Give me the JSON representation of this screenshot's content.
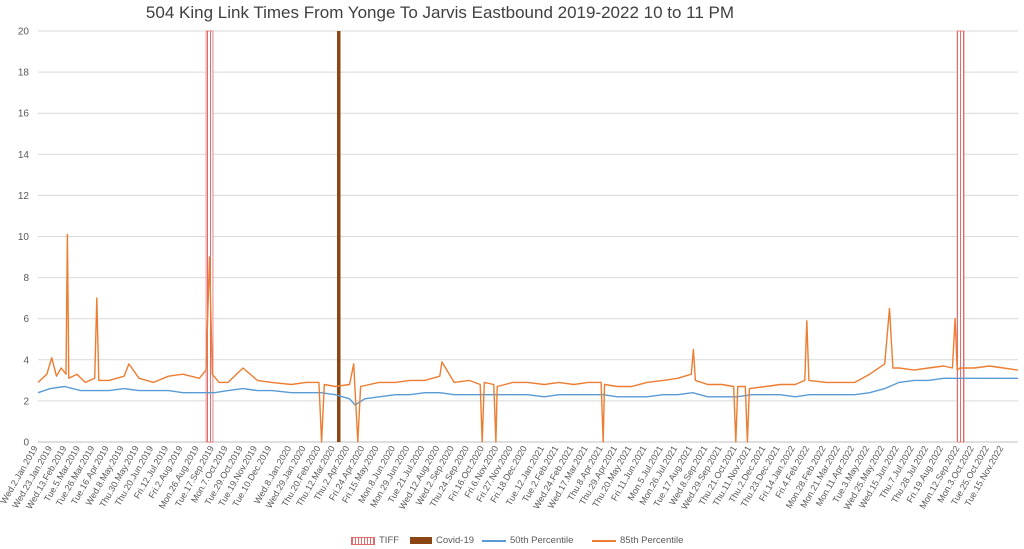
{
  "chart_data": {
    "type": "line",
    "title": "504 King Link Times From Yonge To Jarvis Eastbound 2019-2022 10 to 11 PM",
    "xlabel": "",
    "ylabel": "",
    "ylim": [
      0,
      20
    ],
    "yticks": [
      0,
      2,
      4,
      6,
      8,
      10,
      12,
      14,
      16,
      18,
      20
    ],
    "grid": true,
    "legend_position": "bottom",
    "x_range": [
      "2019-01-02",
      "2022-12-06"
    ],
    "x_tick_labels": [
      {
        "date": "2019-01-02",
        "label": "Wed.2.Jan.2019"
      },
      {
        "date": "2019-01-23",
        "label": "Wed.23.Jan.2019"
      },
      {
        "date": "2019-02-13",
        "label": "Wed.13.Feb.2019"
      },
      {
        "date": "2019-03-05",
        "label": "Tue.5.Mar.2019"
      },
      {
        "date": "2019-03-26",
        "label": "Tue.26.Mar.2019"
      },
      {
        "date": "2019-04-16",
        "label": "Tue.16.Apr.2019"
      },
      {
        "date": "2019-05-08",
        "label": "Wed.8.May.2019"
      },
      {
        "date": "2019-05-30",
        "label": "Thu.30.May.2019"
      },
      {
        "date": "2019-06-20",
        "label": "Thu.20.Jun.2019"
      },
      {
        "date": "2019-07-12",
        "label": "Fri.12.Jul.2019"
      },
      {
        "date": "2019-08-02",
        "label": "Fri.2.Aug.2019"
      },
      {
        "date": "2019-08-26",
        "label": "Mon.26.Aug.2019"
      },
      {
        "date": "2019-09-17",
        "label": "Tue.17.Sep.2019"
      },
      {
        "date": "2019-10-07",
        "label": "Mon.7.Oct.2019"
      },
      {
        "date": "2019-10-29",
        "label": "Tue.29.Oct.2019"
      },
      {
        "date": "2019-11-19",
        "label": "Tue.19.Nov.2019"
      },
      {
        "date": "2019-12-10",
        "label": "Tue.10.Dec.2019"
      },
      {
        "date": "2020-01-08",
        "label": "Wed.8.Jan.2020"
      },
      {
        "date": "2020-01-29",
        "label": "Wed.29.Jan.2020"
      },
      {
        "date": "2020-02-20",
        "label": "Thu.20.Feb.2020"
      },
      {
        "date": "2020-03-12",
        "label": "Thu.12.Mar.2020"
      },
      {
        "date": "2020-04-02",
        "label": "Thu.2.Apr.2020"
      },
      {
        "date": "2020-04-24",
        "label": "Fri.24.Apr.2020"
      },
      {
        "date": "2020-05-15",
        "label": "Fri.15.May.2020"
      },
      {
        "date": "2020-06-08",
        "label": "Mon.8.Jun.2020"
      },
      {
        "date": "2020-06-29",
        "label": "Mon.29.Jun.2020"
      },
      {
        "date": "2020-07-21",
        "label": "Tue.21.Jul.2020"
      },
      {
        "date": "2020-08-12",
        "label": "Wed.12.Aug.2020"
      },
      {
        "date": "2020-09-02",
        "label": "Wed.2.Sep.2020"
      },
      {
        "date": "2020-09-24",
        "label": "Thu.24.Sep.2020"
      },
      {
        "date": "2020-10-16",
        "label": "Fri.16.Oct.2020"
      },
      {
        "date": "2020-11-06",
        "label": "Fri.6.Nov.2020"
      },
      {
        "date": "2020-11-27",
        "label": "Fri.27.Nov.2020"
      },
      {
        "date": "2020-12-18",
        "label": "Fri.18.Dec.2020"
      },
      {
        "date": "2021-01-12",
        "label": "Tue.12.Jan.2021"
      },
      {
        "date": "2021-02-02",
        "label": "Tue.2.Feb.2021"
      },
      {
        "date": "2021-02-24",
        "label": "Wed.24.Feb.2021"
      },
      {
        "date": "2021-03-17",
        "label": "Wed.17.Mar.2021"
      },
      {
        "date": "2021-04-08",
        "label": "Thu.8.Apr.2021"
      },
      {
        "date": "2021-04-29",
        "label": "Thu.29.Apr.2021"
      },
      {
        "date": "2021-05-20",
        "label": "Thu.20.May.2021"
      },
      {
        "date": "2021-06-11",
        "label": "Fri.11.Jun.2021"
      },
      {
        "date": "2021-07-05",
        "label": "Mon.5.Jul.2021"
      },
      {
        "date": "2021-07-26",
        "label": "Mon.26.Jul.2021"
      },
      {
        "date": "2021-08-17",
        "label": "Tue.17.Aug.2021"
      },
      {
        "date": "2021-09-08",
        "label": "Wed.8.Sep.2021"
      },
      {
        "date": "2021-09-29",
        "label": "Wed.29.Sep.2021"
      },
      {
        "date": "2021-10-21",
        "label": "Thu.21.Oct.2021"
      },
      {
        "date": "2021-11-11",
        "label": "Thu.11.Nov.2021"
      },
      {
        "date": "2021-12-02",
        "label": "Thu.2.Dec.2021"
      },
      {
        "date": "2021-12-23",
        "label": "Thu.23.Dec.2021"
      },
      {
        "date": "2022-01-14",
        "label": "Fri.14.Jan.2022"
      },
      {
        "date": "2022-02-04",
        "label": "Fri.4.Feb.2022"
      },
      {
        "date": "2022-02-28",
        "label": "Mon.28.Feb.2022"
      },
      {
        "date": "2022-03-21",
        "label": "Mon.21.Mar.2022"
      },
      {
        "date": "2022-04-11",
        "label": "Mon.11.Apr.2022"
      },
      {
        "date": "2022-05-03",
        "label": "Tue.3.May.2022"
      },
      {
        "date": "2022-05-25",
        "label": "Wed.25.May.2022"
      },
      {
        "date": "2022-06-15",
        "label": "Wed.15.Jun.2022"
      },
      {
        "date": "2022-07-07",
        "label": "Thu.7.Jul.2022"
      },
      {
        "date": "2022-07-28",
        "label": "Thu.28.Jul.2022"
      },
      {
        "date": "2022-08-19",
        "label": "Fri.19.Aug.2022"
      },
      {
        "date": "2022-09-12",
        "label": "Mon.12.Sep.2022"
      },
      {
        "date": "2022-10-03",
        "label": "Mon.3.Oct.2022"
      },
      {
        "date": "2022-10-25",
        "label": "Tue.25.Oct.2022"
      },
      {
        "date": "2022-11-15",
        "label": "Tue.15.Nov.2022"
      }
    ],
    "series": [
      {
        "name": "TIFF",
        "kind": "event-bands",
        "color": "#e26b6b",
        "value": 20,
        "periods": [
          [
            "2019-09-05",
            "2019-09-15"
          ],
          [
            "2022-09-08",
            "2022-09-18"
          ]
        ]
      },
      {
        "name": "Covid-19",
        "kind": "event-bar",
        "color": "#8b4513",
        "value": 20,
        "dates": [
          "2020-03-16",
          "2020-03-17"
        ]
      },
      {
        "name": "50th Percentile",
        "kind": "line",
        "color": "#5b9bd5",
        "points": [
          [
            "2019-01-02",
            2.4
          ],
          [
            "2019-01-20",
            2.6
          ],
          [
            "2019-02-10",
            2.7
          ],
          [
            "2019-03-05",
            2.5
          ],
          [
            "2019-03-26",
            2.5
          ],
          [
            "2019-04-16",
            2.5
          ],
          [
            "2019-05-08",
            2.6
          ],
          [
            "2019-05-30",
            2.5
          ],
          [
            "2019-06-20",
            2.5
          ],
          [
            "2019-07-12",
            2.5
          ],
          [
            "2019-08-02",
            2.4
          ],
          [
            "2019-08-26",
            2.4
          ],
          [
            "2019-09-17",
            2.4
          ],
          [
            "2019-10-07",
            2.5
          ],
          [
            "2019-10-29",
            2.6
          ],
          [
            "2019-11-19",
            2.5
          ],
          [
            "2019-12-10",
            2.5
          ],
          [
            "2020-01-08",
            2.4
          ],
          [
            "2020-01-29",
            2.4
          ],
          [
            "2020-02-20",
            2.4
          ],
          [
            "2020-03-12",
            2.3
          ],
          [
            "2020-04-02",
            2.1
          ],
          [
            "2020-04-10",
            1.8
          ],
          [
            "2020-04-24",
            2.1
          ],
          [
            "2020-05-15",
            2.2
          ],
          [
            "2020-06-08",
            2.3
          ],
          [
            "2020-06-29",
            2.3
          ],
          [
            "2020-07-21",
            2.4
          ],
          [
            "2020-08-12",
            2.4
          ],
          [
            "2020-09-02",
            2.3
          ],
          [
            "2020-09-24",
            2.3
          ],
          [
            "2020-10-16",
            2.3
          ],
          [
            "2020-11-06",
            2.3
          ],
          [
            "2020-11-27",
            2.3
          ],
          [
            "2020-12-18",
            2.3
          ],
          [
            "2021-01-12",
            2.2
          ],
          [
            "2021-02-02",
            2.3
          ],
          [
            "2021-02-24",
            2.3
          ],
          [
            "2021-03-17",
            2.3
          ],
          [
            "2021-04-08",
            2.3
          ],
          [
            "2021-04-29",
            2.2
          ],
          [
            "2021-05-20",
            2.2
          ],
          [
            "2021-06-11",
            2.2
          ],
          [
            "2021-07-05",
            2.3
          ],
          [
            "2021-07-26",
            2.3
          ],
          [
            "2021-08-17",
            2.4
          ],
          [
            "2021-09-08",
            2.2
          ],
          [
            "2021-09-29",
            2.2
          ],
          [
            "2021-10-21",
            2.2
          ],
          [
            "2021-11-11",
            2.3
          ],
          [
            "2021-12-02",
            2.3
          ],
          [
            "2021-12-23",
            2.3
          ],
          [
            "2022-01-14",
            2.2
          ],
          [
            "2022-02-04",
            2.3
          ],
          [
            "2022-02-28",
            2.3
          ],
          [
            "2022-03-21",
            2.3
          ],
          [
            "2022-04-11",
            2.3
          ],
          [
            "2022-05-03",
            2.4
          ],
          [
            "2022-05-25",
            2.6
          ],
          [
            "2022-06-15",
            2.9
          ],
          [
            "2022-07-07",
            3.0
          ],
          [
            "2022-07-28",
            3.0
          ],
          [
            "2022-08-19",
            3.1
          ],
          [
            "2022-09-12",
            3.1
          ],
          [
            "2022-10-03",
            3.1
          ],
          [
            "2022-10-25",
            3.1
          ],
          [
            "2022-11-15",
            3.1
          ],
          [
            "2022-12-06",
            3.1
          ]
        ]
      },
      {
        "name": "85th Percentile",
        "kind": "line",
        "color": "#ed7d31",
        "points": [
          [
            "2019-01-02",
            2.9
          ],
          [
            "2019-01-15",
            3.3
          ],
          [
            "2019-01-22",
            4.1
          ],
          [
            "2019-01-29",
            3.2
          ],
          [
            "2019-02-05",
            3.6
          ],
          [
            "2019-02-12",
            3.3
          ],
          [
            "2019-02-14",
            10.1
          ],
          [
            "2019-02-16",
            3.1
          ],
          [
            "2019-02-28",
            3.3
          ],
          [
            "2019-03-12",
            2.9
          ],
          [
            "2019-03-26",
            3.1
          ],
          [
            "2019-03-29",
            7.0
          ],
          [
            "2019-04-01",
            3.0
          ],
          [
            "2019-04-16",
            3.0
          ],
          [
            "2019-05-08",
            3.2
          ],
          [
            "2019-05-15",
            3.8
          ],
          [
            "2019-05-30",
            3.1
          ],
          [
            "2019-06-20",
            2.9
          ],
          [
            "2019-07-12",
            3.2
          ],
          [
            "2019-08-02",
            3.3
          ],
          [
            "2019-08-26",
            3.1
          ],
          [
            "2019-09-05",
            3.5
          ],
          [
            "2019-09-10",
            9.0
          ],
          [
            "2019-09-14",
            3.3
          ],
          [
            "2019-09-24",
            2.9
          ],
          [
            "2019-10-07",
            2.9
          ],
          [
            "2019-10-29",
            3.6
          ],
          [
            "2019-11-19",
            3.0
          ],
          [
            "2019-12-10",
            2.9
          ],
          [
            "2020-01-08",
            2.8
          ],
          [
            "2020-01-29",
            2.9
          ],
          [
            "2020-02-17",
            2.9
          ],
          [
            "2020-02-21",
            0.0
          ],
          [
            "2020-02-25",
            2.8
          ],
          [
            "2020-03-12",
            2.7
          ],
          [
            "2020-04-02",
            2.8
          ],
          [
            "2020-04-08",
            3.8
          ],
          [
            "2020-04-14",
            0.0
          ],
          [
            "2020-04-18",
            2.7
          ],
          [
            "2020-05-15",
            2.9
          ],
          [
            "2020-06-08",
            2.9
          ],
          [
            "2020-06-29",
            3.0
          ],
          [
            "2020-07-21",
            3.0
          ],
          [
            "2020-08-12",
            3.2
          ],
          [
            "2020-08-15",
            3.9
          ],
          [
            "2020-09-02",
            2.9
          ],
          [
            "2020-09-24",
            3.0
          ],
          [
            "2020-10-10",
            2.8
          ],
          [
            "2020-10-13",
            0.0
          ],
          [
            "2020-10-16",
            2.9
          ],
          [
            "2020-10-30",
            2.8
          ],
          [
            "2020-11-02",
            0.0
          ],
          [
            "2020-11-04",
            2.7
          ],
          [
            "2020-11-27",
            2.9
          ],
          [
            "2020-12-18",
            2.9
          ],
          [
            "2021-01-12",
            2.8
          ],
          [
            "2021-02-02",
            2.9
          ],
          [
            "2021-02-24",
            2.8
          ],
          [
            "2021-03-17",
            2.9
          ],
          [
            "2021-04-05",
            2.9
          ],
          [
            "2021-04-08",
            0.0
          ],
          [
            "2021-04-10",
            2.8
          ],
          [
            "2021-04-29",
            2.7
          ],
          [
            "2021-05-20",
            2.7
          ],
          [
            "2021-06-11",
            2.9
          ],
          [
            "2021-07-05",
            3.0
          ],
          [
            "2021-07-26",
            3.1
          ],
          [
            "2021-08-15",
            3.3
          ],
          [
            "2021-08-18",
            4.5
          ],
          [
            "2021-08-21",
            3.0
          ],
          [
            "2021-09-08",
            2.8
          ],
          [
            "2021-09-29",
            2.8
          ],
          [
            "2021-10-16",
            2.7
          ],
          [
            "2021-10-19",
            0.0
          ],
          [
            "2021-10-22",
            2.7
          ],
          [
            "2021-11-02",
            2.7
          ],
          [
            "2021-11-05",
            0.0
          ],
          [
            "2021-11-08",
            2.6
          ],
          [
            "2021-12-02",
            2.7
          ],
          [
            "2021-12-23",
            2.8
          ],
          [
            "2022-01-14",
            2.8
          ],
          [
            "2022-01-28",
            3.0
          ],
          [
            "2022-01-31",
            5.9
          ],
          [
            "2022-02-03",
            3.0
          ],
          [
            "2022-02-28",
            2.9
          ],
          [
            "2022-03-21",
            2.9
          ],
          [
            "2022-04-11",
            2.9
          ],
          [
            "2022-05-03",
            3.3
          ],
          [
            "2022-05-25",
            3.8
          ],
          [
            "2022-06-01",
            6.5
          ],
          [
            "2022-06-06",
            3.6
          ],
          [
            "2022-06-15",
            3.6
          ],
          [
            "2022-07-07",
            3.5
          ],
          [
            "2022-07-28",
            3.6
          ],
          [
            "2022-08-19",
            3.7
          ],
          [
            "2022-09-01",
            3.6
          ],
          [
            "2022-09-05",
            6.0
          ],
          [
            "2022-09-08",
            3.5
          ],
          [
            "2022-09-12",
            3.6
          ],
          [
            "2022-10-03",
            3.6
          ],
          [
            "2022-10-25",
            3.7
          ],
          [
            "2022-11-15",
            3.6
          ],
          [
            "2022-12-06",
            3.5
          ]
        ]
      }
    ]
  }
}
